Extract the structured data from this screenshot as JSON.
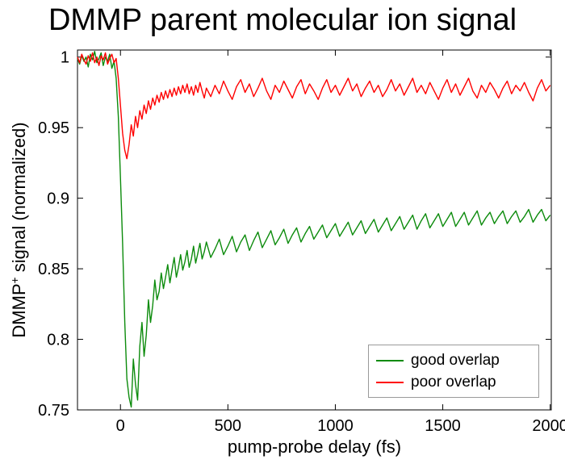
{
  "figure": {
    "background": "#ffffff"
  },
  "chart_data": {
    "type": "line",
    "title": "DMMP parent molecular ion signal",
    "xlabel": "pump-probe delay (fs)",
    "ylabel": "DMMP+ signal (normalized)",
    "ylabel_parts": {
      "prefix": "DMMP",
      "sup": "+",
      "suffix": " signal (normalized)"
    },
    "xlim": [
      -200,
      2005
    ],
    "ylim": [
      0.75,
      1.005
    ],
    "xticks": [
      0,
      500,
      1000,
      1500,
      2000
    ],
    "xtick_labels": [
      "0",
      "500",
      "1000",
      "1500",
      "2000"
    ],
    "yticks": [
      0.75,
      0.8,
      0.85,
      0.9,
      0.95,
      1
    ],
    "ytick_labels": [
      "0.75",
      "0.8",
      "0.85",
      "0.9",
      "0.95",
      "1"
    ],
    "grid": false,
    "legend": {
      "position": "bottom-right",
      "entries": [
        {
          "label": "good overlap",
          "color": "#0c8b0c"
        },
        {
          "label": "poor overlap",
          "color": "#ff0000"
        }
      ]
    },
    "x": [
      -200,
      -190,
      -180,
      -170,
      -160,
      -150,
      -140,
      -130,
      -120,
      -110,
      -100,
      -90,
      -80,
      -70,
      -60,
      -50,
      -40,
      -30,
      -20,
      -10,
      0,
      10,
      20,
      30,
      40,
      50,
      60,
      70,
      80,
      90,
      100,
      110,
      120,
      130,
      140,
      150,
      160,
      170,
      180,
      190,
      200,
      210,
      220,
      230,
      240,
      250,
      260,
      270,
      280,
      290,
      300,
      310,
      320,
      330,
      340,
      350,
      360,
      370,
      380,
      390,
      400,
      420,
      440,
      460,
      480,
      500,
      520,
      540,
      560,
      580,
      600,
      620,
      640,
      660,
      680,
      700,
      720,
      740,
      760,
      780,
      800,
      820,
      840,
      860,
      880,
      900,
      920,
      940,
      960,
      980,
      1000,
      1020,
      1040,
      1060,
      1080,
      1100,
      1120,
      1140,
      1160,
      1180,
      1200,
      1220,
      1240,
      1260,
      1280,
      1300,
      1320,
      1340,
      1360,
      1380,
      1400,
      1420,
      1440,
      1460,
      1480,
      1500,
      1520,
      1540,
      1560,
      1580,
      1600,
      1620,
      1640,
      1660,
      1680,
      1700,
      1720,
      1740,
      1760,
      1780,
      1800,
      1820,
      1840,
      1860,
      1880,
      1900,
      1920,
      1940,
      1960,
      1980,
      2000
    ],
    "series": [
      {
        "name": "good overlap",
        "color": "#0c8b0c",
        "y": [
          0.999,
          0.995,
          1.001,
          0.997,
          1.0,
          0.993,
          1.002,
          0.998,
          1.004,
          0.996,
          0.999,
          1.003,
          0.994,
          1.0,
          0.997,
          1.002,
          0.992,
          0.997,
          0.985,
          0.958,
          0.915,
          0.868,
          0.812,
          0.772,
          0.759,
          0.752,
          0.786,
          0.768,
          0.757,
          0.795,
          0.812,
          0.788,
          0.803,
          0.828,
          0.812,
          0.824,
          0.842,
          0.828,
          0.834,
          0.847,
          0.836,
          0.844,
          0.853,
          0.84,
          0.849,
          0.858,
          0.844,
          0.851,
          0.86,
          0.849,
          0.855,
          0.863,
          0.851,
          0.857,
          0.866,
          0.854,
          0.861,
          0.868,
          0.857,
          0.862,
          0.869,
          0.858,
          0.864,
          0.871,
          0.86,
          0.866,
          0.873,
          0.862,
          0.869,
          0.874,
          0.863,
          0.87,
          0.876,
          0.865,
          0.871,
          0.877,
          0.867,
          0.872,
          0.878,
          0.868,
          0.874,
          0.879,
          0.869,
          0.875,
          0.88,
          0.871,
          0.876,
          0.881,
          0.872,
          0.877,
          0.882,
          0.873,
          0.878,
          0.883,
          0.874,
          0.879,
          0.884,
          0.875,
          0.88,
          0.885,
          0.876,
          0.881,
          0.886,
          0.877,
          0.882,
          0.887,
          0.878,
          0.883,
          0.888,
          0.878,
          0.884,
          0.889,
          0.879,
          0.884,
          0.889,
          0.88,
          0.885,
          0.89,
          0.88,
          0.885,
          0.89,
          0.881,
          0.886,
          0.891,
          0.881,
          0.886,
          0.89,
          0.882,
          0.887,
          0.891,
          0.882,
          0.887,
          0.891,
          0.883,
          0.887,
          0.892,
          0.883,
          0.888,
          0.892,
          0.884,
          0.888
        ]
      },
      {
        "name": "poor overlap",
        "color": "#ff0000",
        "y": [
          1.0,
          0.996,
          1.002,
          0.998,
          0.995,
          1.001,
          0.997,
          1.003,
          0.996,
          1.0,
          0.994,
          1.001,
          0.998,
          1.003,
          0.995,
          0.999,
          1.002,
          0.996,
          0.999,
          0.985,
          0.966,
          0.946,
          0.934,
          0.928,
          0.938,
          0.952,
          0.944,
          0.958,
          0.95,
          0.962,
          0.956,
          0.966,
          0.96,
          0.969,
          0.963,
          0.971,
          0.966,
          0.973,
          0.968,
          0.975,
          0.97,
          0.976,
          0.971,
          0.977,
          0.972,
          0.978,
          0.973,
          0.979,
          0.974,
          0.98,
          0.975,
          0.981,
          0.974,
          0.979,
          0.973,
          0.98,
          0.975,
          0.982,
          0.976,
          0.971,
          0.978,
          0.972,
          0.98,
          0.974,
          0.983,
          0.976,
          0.97,
          0.979,
          0.984,
          0.975,
          0.981,
          0.972,
          0.978,
          0.985,
          0.976,
          0.97,
          0.98,
          0.975,
          0.983,
          0.977,
          0.971,
          0.979,
          0.984,
          0.974,
          0.981,
          0.976,
          0.97,
          0.978,
          0.984,
          0.975,
          0.98,
          0.973,
          0.979,
          0.985,
          0.976,
          0.981,
          0.972,
          0.978,
          0.983,
          0.975,
          0.98,
          0.972,
          0.977,
          0.984,
          0.976,
          0.981,
          0.973,
          0.979,
          0.985,
          0.975,
          0.98,
          0.974,
          0.982,
          0.976,
          0.97,
          0.978,
          0.984,
          0.975,
          0.981,
          0.973,
          0.979,
          0.985,
          0.976,
          0.971,
          0.98,
          0.975,
          0.982,
          0.977,
          0.971,
          0.978,
          0.983,
          0.974,
          0.98,
          0.976,
          0.982,
          0.975,
          0.969,
          0.978,
          0.984,
          0.976,
          0.98
        ]
      }
    ]
  }
}
